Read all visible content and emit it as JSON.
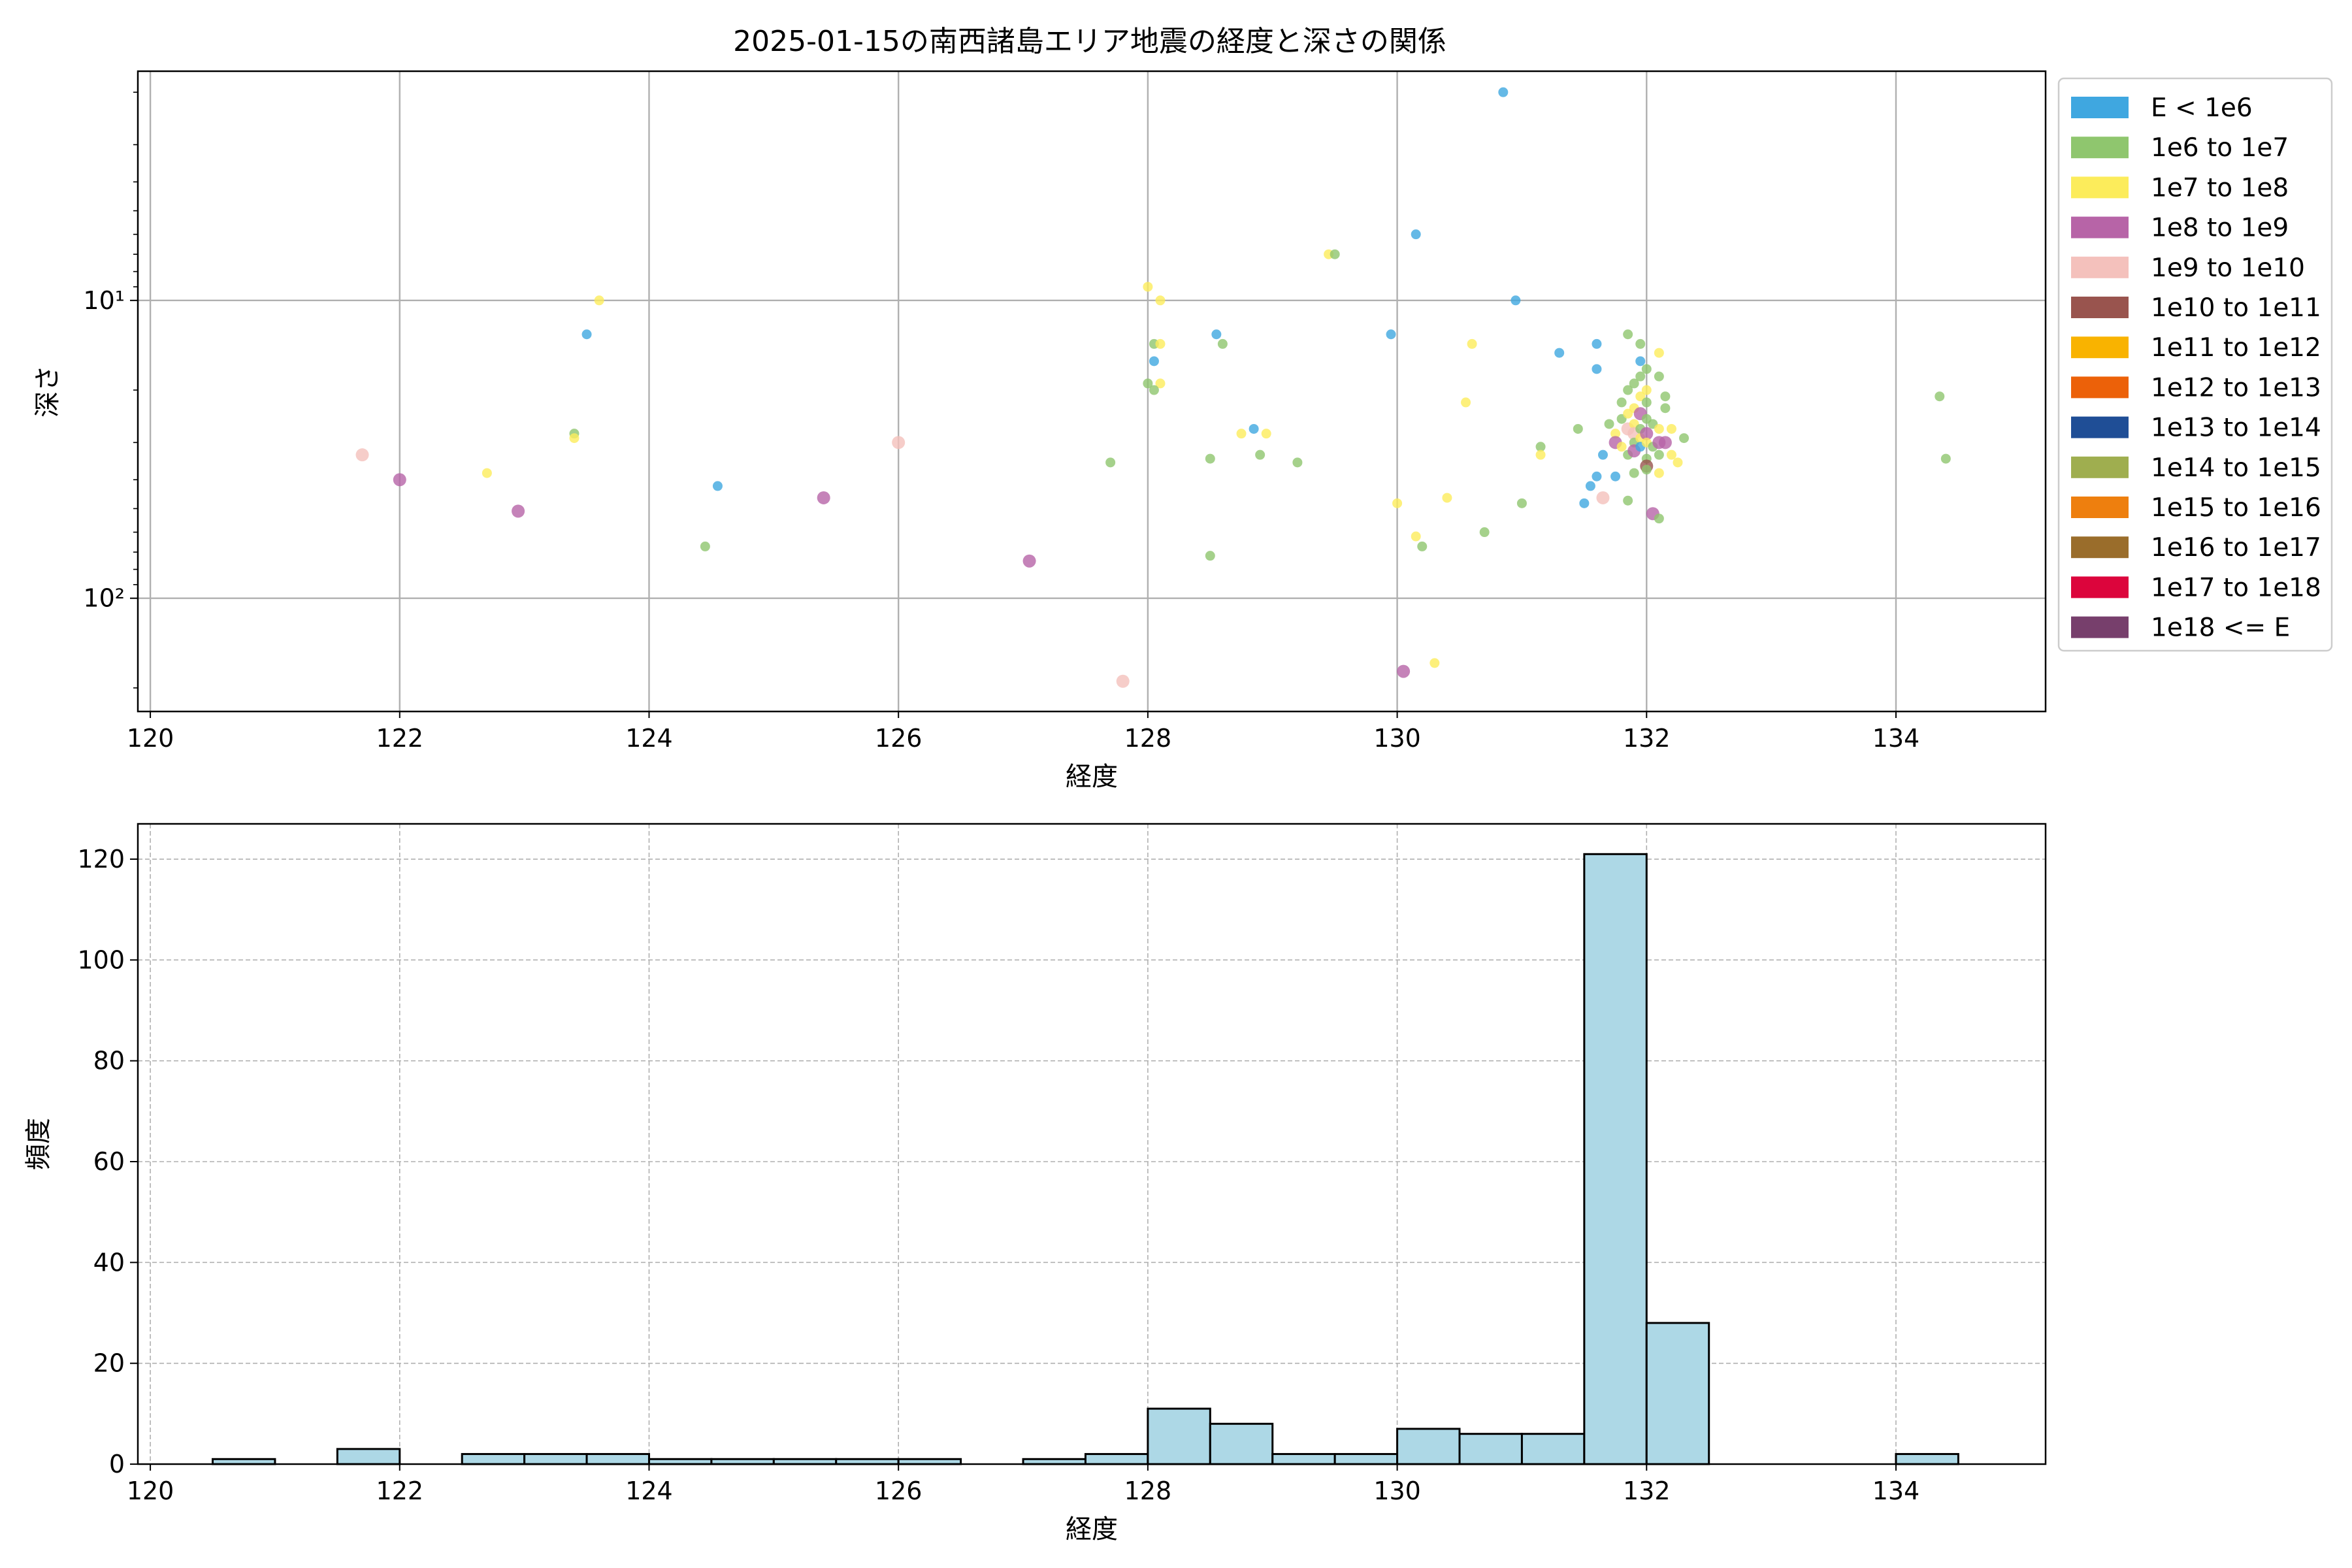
{
  "chart_data": [
    {
      "type": "scatter",
      "title": "2025-01-15の南西諸島エリア地震の経度と深さの関係",
      "xlabel": "経度",
      "ylabel": "深さ",
      "xlim": [
        119.9,
        135.2
      ],
      "ylim": [
        240,
        1.7
      ],
      "y_scale": "log-inverted",
      "x_ticks": [
        120,
        122,
        124,
        126,
        128,
        130,
        132,
        134
      ],
      "y_ticks": [
        {
          "value": 10,
          "label": "10¹"
        },
        {
          "value": 100,
          "label": "10²"
        }
      ],
      "grid": true,
      "legend_position": "outside-right",
      "legend": [
        {
          "label": "E < 1e6",
          "color": "#3fa7e0"
        },
        {
          "label": "1e6 to 1e7",
          "color": "#8fc66e"
        },
        {
          "label": "1e7 to 1e8",
          "color": "#fcec5b"
        },
        {
          "label": "1e8 to 1e9",
          "color": "#b764a7"
        },
        {
          "label": "1e9 to 1e10",
          "color": "#f4c1bc"
        },
        {
          "label": "1e10 to 1e11",
          "color": "#99544e"
        },
        {
          "label": "1e11 to 1e12",
          "color": "#f9b300"
        },
        {
          "label": "1e12 to 1e13",
          "color": "#ec6109"
        },
        {
          "label": "1e13 to 1e14",
          "color": "#1f4e96"
        },
        {
          "label": "1e14 to 1e15",
          "color": "#9fae4f"
        },
        {
          "label": "1e15 to 1e16",
          "color": "#ee7f0e"
        },
        {
          "label": "1e16 to 1e17",
          "color": "#9a6d2b"
        },
        {
          "label": "1e17 to 1e18",
          "color": "#dc053c"
        },
        {
          "label": "1e18 <= E",
          "color": "#773f6c"
        }
      ],
      "points": [
        {
          "x": 121.7,
          "y": 33,
          "c": 4
        },
        {
          "x": 122.0,
          "y": 40,
          "c": 3
        },
        {
          "x": 122.95,
          "y": 51,
          "c": 3
        },
        {
          "x": 122.7,
          "y": 38,
          "c": 2
        },
        {
          "x": 123.4,
          "y": 28,
          "c": 1
        },
        {
          "x": 123.4,
          "y": 29,
          "c": 2
        },
        {
          "x": 123.5,
          "y": 13,
          "c": 0
        },
        {
          "x": 123.6,
          "y": 10,
          "c": 2
        },
        {
          "x": 124.45,
          "y": 67,
          "c": 1
        },
        {
          "x": 124.55,
          "y": 42,
          "c": 0
        },
        {
          "x": 125.4,
          "y": 46,
          "c": 3
        },
        {
          "x": 126.0,
          "y": 30,
          "c": 4
        },
        {
          "x": 127.05,
          "y": 75,
          "c": 3
        },
        {
          "x": 127.7,
          "y": 35,
          "c": 1
        },
        {
          "x": 127.8,
          "y": 190,
          "c": 4
        },
        {
          "x": 128.0,
          "y": 9,
          "c": 2
        },
        {
          "x": 128.1,
          "y": 10,
          "c": 2
        },
        {
          "x": 128.05,
          "y": 14,
          "c": 1
        },
        {
          "x": 128.05,
          "y": 16,
          "c": 0
        },
        {
          "x": 128.1,
          "y": 14,
          "c": 2
        },
        {
          "x": 128.0,
          "y": 19,
          "c": 1
        },
        {
          "x": 128.1,
          "y": 19,
          "c": 2
        },
        {
          "x": 128.05,
          "y": 20,
          "c": 1
        },
        {
          "x": 128.55,
          "y": 13,
          "c": 0
        },
        {
          "x": 128.6,
          "y": 14,
          "c": 1
        },
        {
          "x": 128.5,
          "y": 34,
          "c": 1
        },
        {
          "x": 128.5,
          "y": 72,
          "c": 1
        },
        {
          "x": 128.75,
          "y": 28,
          "c": 2
        },
        {
          "x": 128.85,
          "y": 27,
          "c": 0
        },
        {
          "x": 128.95,
          "y": 28,
          "c": 2
        },
        {
          "x": 128.9,
          "y": 33,
          "c": 1
        },
        {
          "x": 129.2,
          "y": 35,
          "c": 1
        },
        {
          "x": 129.45,
          "y": 7,
          "c": 2
        },
        {
          "x": 129.5,
          "y": 7,
          "c": 1
        },
        {
          "x": 129.95,
          "y": 13,
          "c": 0
        },
        {
          "x": 130.15,
          "y": 6,
          "c": 0
        },
        {
          "x": 130.0,
          "y": 48,
          "c": 2
        },
        {
          "x": 130.15,
          "y": 62,
          "c": 2
        },
        {
          "x": 130.2,
          "y": 67,
          "c": 1
        },
        {
          "x": 130.05,
          "y": 176,
          "c": 3
        },
        {
          "x": 130.3,
          "y": 165,
          "c": 2
        },
        {
          "x": 130.4,
          "y": 46,
          "c": 2
        },
        {
          "x": 130.55,
          "y": 22,
          "c": 2
        },
        {
          "x": 130.6,
          "y": 14,
          "c": 2
        },
        {
          "x": 130.7,
          "y": 60,
          "c": 1
        },
        {
          "x": 130.85,
          "y": 2.0,
          "c": 0
        },
        {
          "x": 130.95,
          "y": 10,
          "c": 0
        },
        {
          "x": 131.0,
          "y": 48,
          "c": 1
        },
        {
          "x": 131.15,
          "y": 31,
          "c": 1
        },
        {
          "x": 131.15,
          "y": 33,
          "c": 2
        },
        {
          "x": 131.3,
          "y": 15,
          "c": 0
        },
        {
          "x": 131.45,
          "y": 27,
          "c": 1
        },
        {
          "x": 131.5,
          "y": 48,
          "c": 0
        },
        {
          "x": 131.55,
          "y": 42,
          "c": 0
        },
        {
          "x": 131.6,
          "y": 39,
          "c": 0
        },
        {
          "x": 131.6,
          "y": 14,
          "c": 0
        },
        {
          "x": 131.6,
          "y": 17,
          "c": 0
        },
        {
          "x": 131.65,
          "y": 33,
          "c": 0
        },
        {
          "x": 131.65,
          "y": 46,
          "c": 4
        },
        {
          "x": 131.75,
          "y": 39,
          "c": 0
        },
        {
          "x": 131.7,
          "y": 26,
          "c": 1
        },
        {
          "x": 131.75,
          "y": 28,
          "c": 2
        },
        {
          "x": 131.75,
          "y": 30,
          "c": 3
        },
        {
          "x": 131.8,
          "y": 25,
          "c": 1
        },
        {
          "x": 131.8,
          "y": 22,
          "c": 1
        },
        {
          "x": 131.8,
          "y": 31,
          "c": 2
        },
        {
          "x": 131.85,
          "y": 20,
          "c": 1
        },
        {
          "x": 131.85,
          "y": 24,
          "c": 2
        },
        {
          "x": 131.85,
          "y": 27,
          "c": 4
        },
        {
          "x": 131.85,
          "y": 13,
          "c": 1
        },
        {
          "x": 131.85,
          "y": 47,
          "c": 1
        },
        {
          "x": 131.85,
          "y": 33,
          "c": 1
        },
        {
          "x": 131.9,
          "y": 19,
          "c": 1
        },
        {
          "x": 131.9,
          "y": 23,
          "c": 2
        },
        {
          "x": 131.9,
          "y": 26,
          "c": 2
        },
        {
          "x": 131.9,
          "y": 28,
          "c": 4
        },
        {
          "x": 131.9,
          "y": 30,
          "c": 1
        },
        {
          "x": 131.9,
          "y": 32,
          "c": 3
        },
        {
          "x": 131.9,
          "y": 38,
          "c": 1
        },
        {
          "x": 131.95,
          "y": 14,
          "c": 1
        },
        {
          "x": 131.95,
          "y": 16,
          "c": 0
        },
        {
          "x": 131.95,
          "y": 18,
          "c": 1
        },
        {
          "x": 131.95,
          "y": 21,
          "c": 2
        },
        {
          "x": 131.95,
          "y": 24,
          "c": 3
        },
        {
          "x": 131.95,
          "y": 27,
          "c": 1
        },
        {
          "x": 131.95,
          "y": 29,
          "c": 2
        },
        {
          "x": 131.95,
          "y": 31,
          "c": 0
        },
        {
          "x": 132.0,
          "y": 17,
          "c": 1
        },
        {
          "x": 132.0,
          "y": 20,
          "c": 2
        },
        {
          "x": 132.0,
          "y": 22,
          "c": 1
        },
        {
          "x": 132.0,
          "y": 25,
          "c": 1
        },
        {
          "x": 132.0,
          "y": 28,
          "c": 3
        },
        {
          "x": 132.0,
          "y": 30,
          "c": 2
        },
        {
          "x": 132.0,
          "y": 34,
          "c": 1
        },
        {
          "x": 132.0,
          "y": 36,
          "c": 5
        },
        {
          "x": 132.0,
          "y": 37,
          "c": 1
        },
        {
          "x": 132.05,
          "y": 26,
          "c": 1
        },
        {
          "x": 132.05,
          "y": 31,
          "c": 1
        },
        {
          "x": 132.05,
          "y": 52,
          "c": 3
        },
        {
          "x": 132.1,
          "y": 15,
          "c": 2
        },
        {
          "x": 132.1,
          "y": 18,
          "c": 1
        },
        {
          "x": 132.1,
          "y": 27,
          "c": 2
        },
        {
          "x": 132.1,
          "y": 30,
          "c": 3
        },
        {
          "x": 132.1,
          "y": 33,
          "c": 1
        },
        {
          "x": 132.1,
          "y": 38,
          "c": 2
        },
        {
          "x": 132.1,
          "y": 54,
          "c": 1
        },
        {
          "x": 132.15,
          "y": 21,
          "c": 1
        },
        {
          "x": 132.15,
          "y": 23,
          "c": 1
        },
        {
          "x": 132.15,
          "y": 30,
          "c": 3
        },
        {
          "x": 132.2,
          "y": 27,
          "c": 2
        },
        {
          "x": 132.2,
          "y": 33,
          "c": 2
        },
        {
          "x": 132.25,
          "y": 35,
          "c": 2
        },
        {
          "x": 132.3,
          "y": 29,
          "c": 1
        },
        {
          "x": 134.35,
          "y": 21,
          "c": 1
        },
        {
          "x": 134.4,
          "y": 34,
          "c": 1
        }
      ]
    },
    {
      "type": "bar",
      "subtype": "histogram",
      "title": "",
      "xlabel": "経度",
      "ylabel": "頻度",
      "xlim": [
        119.9,
        135.2
      ],
      "ylim": [
        0,
        127
      ],
      "x_ticks": [
        120,
        122,
        124,
        126,
        128,
        130,
        132,
        134
      ],
      "y_ticks": [
        0,
        20,
        40,
        60,
        80,
        100,
        120
      ],
      "grid": true,
      "bar_color": "#add8e6",
      "edge_color": "#000000",
      "bins": [
        {
          "x0": 120.5,
          "x1": 121.0,
          "value": 1
        },
        {
          "x0": 121.5,
          "x1": 122.0,
          "value": 3
        },
        {
          "x0": 122.5,
          "x1": 123.0,
          "value": 2
        },
        {
          "x0": 123.0,
          "x1": 123.5,
          "value": 2
        },
        {
          "x0": 123.5,
          "x1": 124.0,
          "value": 2
        },
        {
          "x0": 124.0,
          "x1": 124.5,
          "value": 1
        },
        {
          "x0": 124.5,
          "x1": 125.0,
          "value": 1
        },
        {
          "x0": 125.0,
          "x1": 125.5,
          "value": 1
        },
        {
          "x0": 125.5,
          "x1": 126.0,
          "value": 1
        },
        {
          "x0": 126.0,
          "x1": 126.5,
          "value": 1
        },
        {
          "x0": 127.0,
          "x1": 127.5,
          "value": 1
        },
        {
          "x0": 127.5,
          "x1": 128.0,
          "value": 2
        },
        {
          "x0": 128.0,
          "x1": 128.5,
          "value": 11
        },
        {
          "x0": 128.5,
          "x1": 129.0,
          "value": 8
        },
        {
          "x0": 129.0,
          "x1": 129.5,
          "value": 2
        },
        {
          "x0": 129.5,
          "x1": 130.0,
          "value": 2
        },
        {
          "x0": 130.0,
          "x1": 130.5,
          "value": 7
        },
        {
          "x0": 130.5,
          "x1": 131.0,
          "value": 6
        },
        {
          "x0": 131.0,
          "x1": 131.5,
          "value": 6
        },
        {
          "x0": 131.5,
          "x1": 132.0,
          "value": 121
        },
        {
          "x0": 132.0,
          "x1": 132.5,
          "value": 28
        },
        {
          "x0": 134.0,
          "x1": 134.5,
          "value": 2
        }
      ]
    }
  ]
}
